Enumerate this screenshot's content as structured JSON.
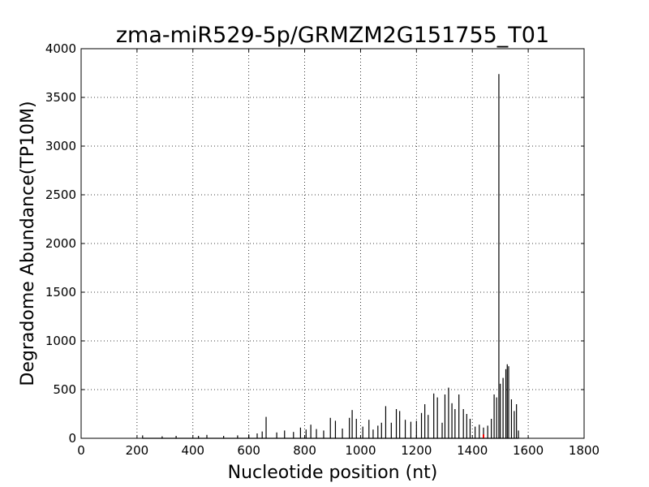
{
  "chart_data": {
    "type": "line",
    "title": "zma-miR529-5p/GRMZM2G151755_T01",
    "xlabel": "Nucleotide position (nt)",
    "ylabel": "Degradome Abundance(TP10M)",
    "xlim": [
      0,
      1800
    ],
    "ylim": [
      0,
      4000
    ],
    "xticks": [
      0,
      200,
      400,
      600,
      800,
      1000,
      1200,
      1400,
      1600,
      1800
    ],
    "yticks": [
      0,
      500,
      1000,
      1500,
      2000,
      2500,
      3000,
      3500,
      4000
    ],
    "grid": true,
    "grid_style": "dotted",
    "series": [
      {
        "color": "#000000",
        "x": [
          220,
          290,
          340,
          420,
          450,
          510,
          560,
          600,
          630,
          648,
          662,
          700,
          728,
          760,
          785,
          805,
          822,
          842,
          868,
          892,
          910,
          935,
          960,
          970,
          985,
          1008,
          1030,
          1045,
          1062,
          1075,
          1090,
          1110,
          1128,
          1140,
          1160,
          1180,
          1200,
          1218,
          1230,
          1242,
          1262,
          1275,
          1292,
          1302,
          1315,
          1327,
          1338,
          1352,
          1368,
          1380,
          1392,
          1410,
          1425,
          1440,
          1455,
          1468,
          1478,
          1487,
          1495,
          1500,
          1510,
          1520,
          1525,
          1530,
          1540,
          1550,
          1558,
          1565
        ],
        "y": [
          30,
          20,
          25,
          25,
          35,
          25,
          30,
          40,
          50,
          70,
          220,
          60,
          80,
          65,
          110,
          90,
          140,
          95,
          80,
          210,
          180,
          100,
          210,
          290,
          200,
          120,
          190,
          90,
          130,
          160,
          330,
          160,
          300,
          280,
          190,
          170,
          180,
          260,
          350,
          240,
          460,
          420,
          160,
          450,
          520,
          360,
          300,
          450,
          300,
          250,
          200,
          120,
          140,
          110,
          130,
          200,
          450,
          420,
          3740,
          560,
          620,
          710,
          760,
          740,
          400,
          280,
          350,
          80
        ]
      },
      {
        "color": "#ff0000",
        "x": [
          1440
        ],
        "y": [
          40
        ]
      }
    ]
  }
}
